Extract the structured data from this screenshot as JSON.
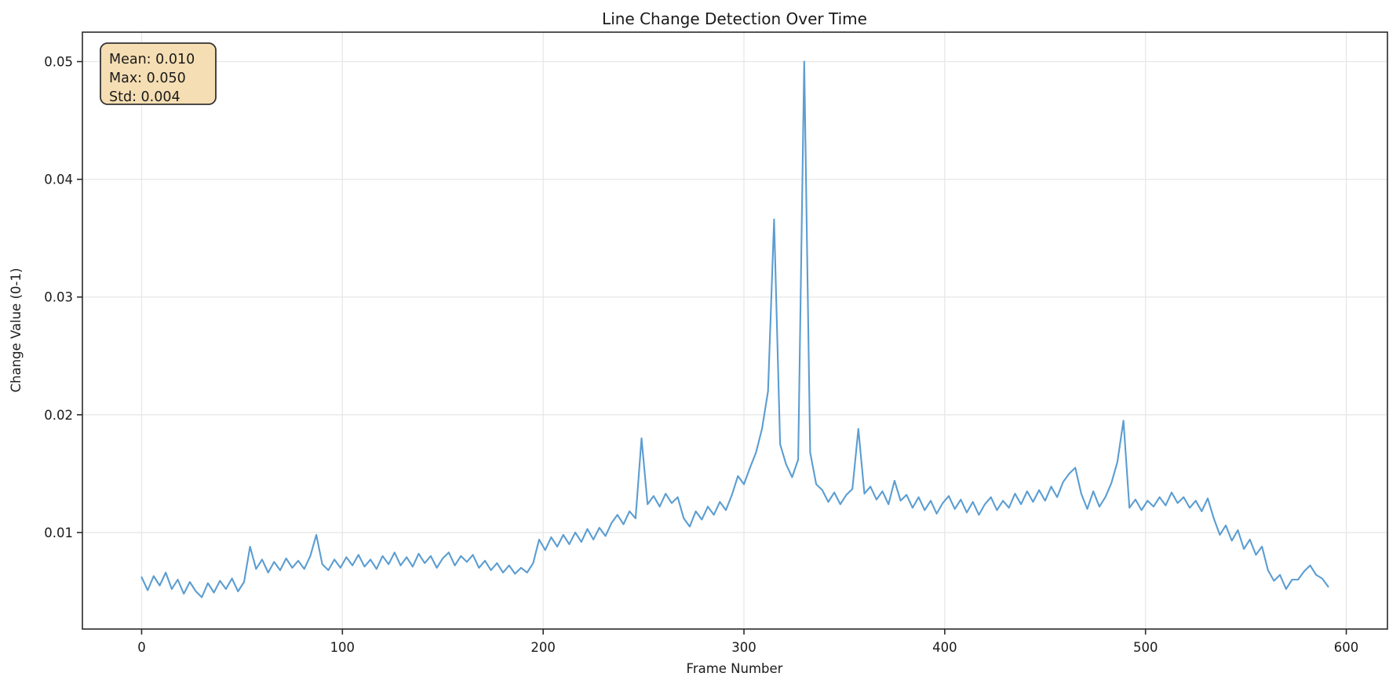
{
  "figure": {
    "background": "#ffffff",
    "plot_background": "#ffffff",
    "spine_color": "#2a2a2a",
    "grid_color": "#e7e7e7",
    "tick_color": "#2a2a2a"
  },
  "stats_box": {
    "lines": [
      "Mean: 0.010",
      "Max: 0.050",
      "Std: 0.004"
    ],
    "bg_color": "#f5deb3",
    "border_color": "#333333"
  },
  "chart_data": {
    "type": "line",
    "title": "Line Change Detection Over Time",
    "xlabel": "Frame Number",
    "ylabel": "Change Value (0-1)",
    "legend": "none",
    "grid": true,
    "xlim": [
      -29.5,
      620.5
    ],
    "ylim": [
      0.0018,
      0.0525
    ],
    "x_ticks": [
      0,
      100,
      200,
      300,
      400,
      500,
      600
    ],
    "x_tick_labels": [
      "0",
      "100",
      "200",
      "300",
      "400",
      "500",
      "600"
    ],
    "y_ticks": [
      0.01,
      0.02,
      0.03,
      0.04,
      0.05
    ],
    "y_tick_labels": [
      "0.01",
      "0.02",
      "0.03",
      "0.04",
      "0.05"
    ],
    "line_color": "#5b9dd1",
    "line_width": 2.1,
    "annotations": [
      "Mean: 0.010",
      "Max: 0.050",
      "Std: 0.004"
    ],
    "series": [
      {
        "name": "change_value",
        "x": {
          "start": 0,
          "step": 3
        },
        "y": [
          0.0062,
          0.0051,
          0.0063,
          0.0055,
          0.0066,
          0.0052,
          0.006,
          0.0048,
          0.0058,
          0.005,
          0.0045,
          0.0057,
          0.0049,
          0.0059,
          0.0052,
          0.0061,
          0.005,
          0.0058,
          0.0088,
          0.0069,
          0.0077,
          0.0066,
          0.0075,
          0.0068,
          0.0078,
          0.007,
          0.0076,
          0.0069,
          0.008,
          0.0098,
          0.0073,
          0.0068,
          0.0077,
          0.007,
          0.0079,
          0.0072,
          0.0081,
          0.0071,
          0.0077,
          0.0069,
          0.008,
          0.0073,
          0.0083,
          0.0072,
          0.0079,
          0.0071,
          0.0082,
          0.0074,
          0.008,
          0.007,
          0.0078,
          0.0083,
          0.0072,
          0.008,
          0.0075,
          0.0081,
          0.007,
          0.0076,
          0.0068,
          0.0074,
          0.0066,
          0.0072,
          0.0065,
          0.007,
          0.0066,
          0.0074,
          0.0094,
          0.0085,
          0.0096,
          0.0088,
          0.0098,
          0.009,
          0.01,
          0.0092,
          0.0103,
          0.0094,
          0.0104,
          0.0097,
          0.0108,
          0.0115,
          0.0107,
          0.0118,
          0.0112,
          0.018,
          0.0124,
          0.0131,
          0.0122,
          0.0133,
          0.0125,
          0.013,
          0.0112,
          0.0105,
          0.0118,
          0.0111,
          0.0122,
          0.0115,
          0.0126,
          0.0119,
          0.0132,
          0.0148,
          0.0141,
          0.0155,
          0.0168,
          0.0188,
          0.022,
          0.0366,
          0.0175,
          0.0158,
          0.0147,
          0.0162,
          0.05,
          0.0168,
          0.0141,
          0.0136,
          0.0126,
          0.0134,
          0.0124,
          0.0132,
          0.0137,
          0.0188,
          0.0133,
          0.0139,
          0.0128,
          0.0135,
          0.0124,
          0.0144,
          0.0127,
          0.0132,
          0.0121,
          0.013,
          0.0119,
          0.0127,
          0.0116,
          0.0125,
          0.0131,
          0.012,
          0.0128,
          0.0117,
          0.0126,
          0.0115,
          0.0124,
          0.013,
          0.0119,
          0.0127,
          0.0121,
          0.0133,
          0.0124,
          0.0135,
          0.0126,
          0.0136,
          0.0127,
          0.0139,
          0.013,
          0.0143,
          0.015,
          0.0155,
          0.0133,
          0.012,
          0.0135,
          0.0122,
          0.013,
          0.0142,
          0.016,
          0.0195,
          0.0121,
          0.0128,
          0.0119,
          0.0127,
          0.0122,
          0.013,
          0.0123,
          0.0134,
          0.0125,
          0.013,
          0.0121,
          0.0127,
          0.0118,
          0.0129,
          0.0112,
          0.0098,
          0.0106,
          0.0093,
          0.0102,
          0.0086,
          0.0094,
          0.0081,
          0.0088,
          0.0068,
          0.0059,
          0.0064,
          0.0052,
          0.006,
          0.006,
          0.0067,
          0.0072,
          0.0064,
          0.0061,
          0.0054
        ]
      }
    ]
  }
}
